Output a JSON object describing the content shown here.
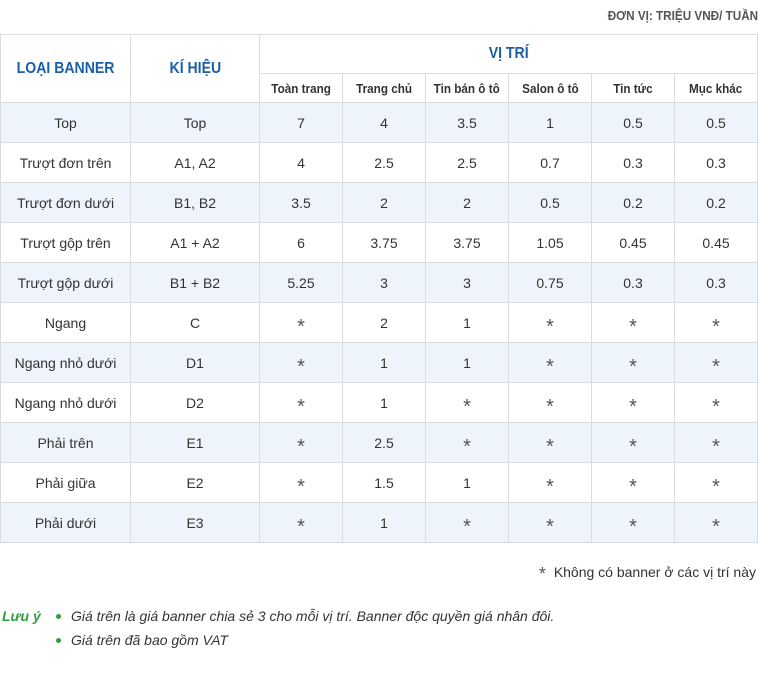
{
  "unit_label": "ĐƠN VỊ: TRIỆU VNĐ/ TUẦN",
  "table": {
    "head_type": "LOẠI BANNER",
    "head_code": "KÍ HIỆU",
    "head_position": "VỊ TRÍ",
    "positions": [
      "Toàn trang",
      "Trang chủ",
      "Tin bán ô tô",
      "Salon ô tô",
      "Tin tức",
      "Mục khác"
    ],
    "rows": [
      {
        "type": "Top",
        "code": "Top",
        "values": [
          "7",
          "4",
          "3.5",
          "1",
          "0.5",
          "0.5"
        ]
      },
      {
        "type": "Trượt đơn trên",
        "code": "A1, A2",
        "values": [
          "4",
          "2.5",
          "2.5",
          "0.7",
          "0.3",
          "0.3"
        ]
      },
      {
        "type": "Trượt đơn dưới",
        "code": "B1, B2",
        "values": [
          "3.5",
          "2",
          "2",
          "0.5",
          "0.2",
          "0.2"
        ]
      },
      {
        "type": "Trượt gộp trên",
        "code": "A1 + A2",
        "values": [
          "6",
          "3.75",
          "3.75",
          "1.05",
          "0.45",
          "0.45"
        ]
      },
      {
        "type": "Trượt gộp dưới",
        "code": "B1 + B2",
        "values": [
          "5.25",
          "3",
          "3",
          "0.75",
          "0.3",
          "0.3"
        ]
      },
      {
        "type": "Ngang",
        "code": "C",
        "values": [
          "*",
          "2",
          "1",
          "*",
          "*",
          "*"
        ]
      },
      {
        "type": "Ngang nhỏ dưới",
        "code": "D1",
        "values": [
          "*",
          "1",
          "1",
          "*",
          "*",
          "*"
        ]
      },
      {
        "type": "Ngang nhỏ dưới",
        "code": "D2",
        "values": [
          "*",
          "1",
          "*",
          "*",
          "*",
          "*"
        ]
      },
      {
        "type": "Phải trên",
        "code": "E1",
        "values": [
          "*",
          "2.5",
          "*",
          "*",
          "*",
          "*"
        ]
      },
      {
        "type": "Phải giữa",
        "code": "E2",
        "values": [
          "*",
          "1.5",
          "1",
          "*",
          "*",
          "*"
        ]
      },
      {
        "type": "Phải dưới",
        "code": "E3",
        "values": [
          "*",
          "1",
          "*",
          "*",
          "*",
          "*"
        ]
      }
    ]
  },
  "legend": {
    "symbol": "*",
    "text": "Không có banner ở các vị trí này"
  },
  "notes": {
    "label": "Lưu ý",
    "items": [
      "Giá trên là giá banner chia sẻ 3 cho mỗi vị trí. Banner độc quyền giá nhân đôi.",
      "Giá trên đã bao gồm VAT"
    ]
  }
}
